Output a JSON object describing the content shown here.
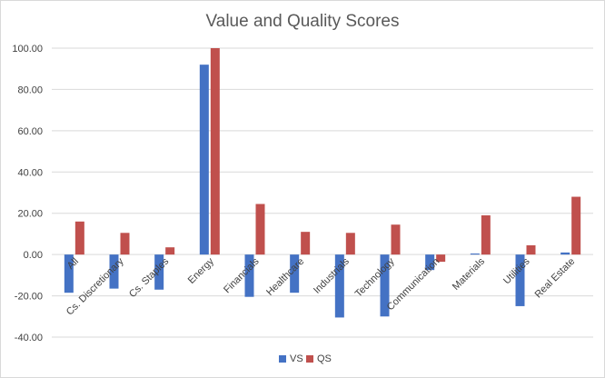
{
  "chart_data": {
    "type": "bar",
    "title": "Value and Quality Scores",
    "xlabel": "",
    "ylabel": "",
    "ylim": [
      -40,
      100
    ],
    "yticks": [
      "100.00",
      "80.00",
      "60.00",
      "40.00",
      "20.00",
      "0.00",
      "-20.00",
      "-40.00"
    ],
    "ytick_values": [
      100,
      80,
      60,
      40,
      20,
      0,
      -20,
      -40
    ],
    "grid": true,
    "legend_position": "bottom",
    "categories": [
      "All",
      "Cs. Discretionary",
      "Cs. Staples",
      "Energy",
      "Financials",
      "Healthcare",
      "Industrials",
      "Technology",
      "Communication",
      "Materials",
      "Utilities",
      "Real Estate"
    ],
    "series": [
      {
        "name": "VS",
        "color": "#4472c4",
        "values": [
          -18.5,
          -16.5,
          -17,
          92,
          -20.5,
          -18.5,
          -30.5,
          -30,
          -7.5,
          0.5,
          -25,
          1
        ]
      },
      {
        "name": "QS",
        "color": "#c0504d",
        "values": [
          16,
          10.5,
          3.5,
          100,
          24.5,
          11,
          10.5,
          14.5,
          -3.5,
          19,
          4.5,
          28
        ]
      }
    ]
  }
}
